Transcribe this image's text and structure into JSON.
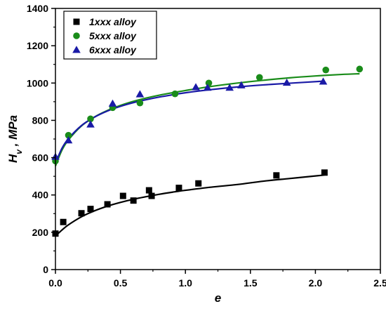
{
  "chart_data": {
    "type": "scatter",
    "xlabel": "e",
    "ylabel_main": "H",
    "ylabel_sub": "v",
    "ylabel_rest": " , MPa",
    "xlim": [
      0,
      2.5
    ],
    "ylim": [
      0,
      1400
    ],
    "xticks": [
      "0.0",
      "0.5",
      "1.0",
      "1.5",
      "2.0",
      "2.5"
    ],
    "yticks": [
      "0",
      "200",
      "400",
      "600",
      "800",
      "1000",
      "1200",
      "1400"
    ],
    "legend_position": "top-left",
    "series": [
      {
        "name": "1xxx alloy",
        "marker": "square",
        "color": "#000000",
        "x": [
          0.0,
          0.06,
          0.2,
          0.27,
          0.4,
          0.52,
          0.6,
          0.72,
          0.74,
          0.95,
          1.1,
          1.7,
          2.07
        ],
        "y": [
          193,
          255,
          302,
          325,
          350,
          395,
          370,
          425,
          395,
          438,
          462,
          505,
          520
        ],
        "fit_x": [
          0.0,
          0.05,
          0.1,
          0.2,
          0.3,
          0.4,
          0.5,
          0.6,
          0.7,
          0.8,
          0.9,
          1.0,
          1.2,
          1.4,
          1.6,
          1.8,
          2.0,
          2.07
        ],
        "fit_y": [
          180,
          212,
          240,
          283,
          315,
          340,
          360,
          377,
          391,
          404,
          415,
          425,
          442,
          456,
          474,
          488,
          502,
          507
        ]
      },
      {
        "name": "5xxx alloy",
        "marker": "circle",
        "color": "#1a8c1a",
        "x": [
          0.0,
          0.1,
          0.27,
          0.44,
          0.65,
          0.92,
          1.18,
          1.57,
          2.08,
          2.34
        ],
        "y": [
          582,
          720,
          808,
          868,
          893,
          942,
          1000,
          1030,
          1070,
          1075
        ],
        "fit_x": [
          0.0,
          0.05,
          0.1,
          0.2,
          0.3,
          0.4,
          0.5,
          0.6,
          0.7,
          0.8,
          0.9,
          1.0,
          1.2,
          1.4,
          1.6,
          1.8,
          2.0,
          2.2,
          2.34
        ],
        "fit_y": [
          555,
          640,
          695,
          770,
          818,
          853,
          880,
          902,
          920,
          935,
          948,
          960,
          982,
          1000,
          1015,
          1028,
          1038,
          1046,
          1050
        ]
      },
      {
        "name": "6xxx alloy",
        "marker": "triangle",
        "color": "#1a1aa6",
        "x": [
          0.0,
          0.1,
          0.27,
          0.44,
          0.65,
          1.08,
          1.17,
          1.34,
          1.43,
          1.78,
          2.06
        ],
        "y": [
          605,
          693,
          778,
          890,
          940,
          978,
          975,
          975,
          988,
          1002,
          1008
        ],
        "fit_x": [
          0.0,
          0.05,
          0.1,
          0.2,
          0.3,
          0.4,
          0.5,
          0.6,
          0.7,
          0.8,
          0.9,
          1.0,
          1.2,
          1.4,
          1.6,
          1.8,
          2.06
        ],
        "fit_y": [
          570,
          650,
          702,
          772,
          817,
          850,
          875,
          895,
          911,
          925,
          937,
          948,
          965,
          979,
          990,
          999,
          1010
        ]
      }
    ]
  }
}
